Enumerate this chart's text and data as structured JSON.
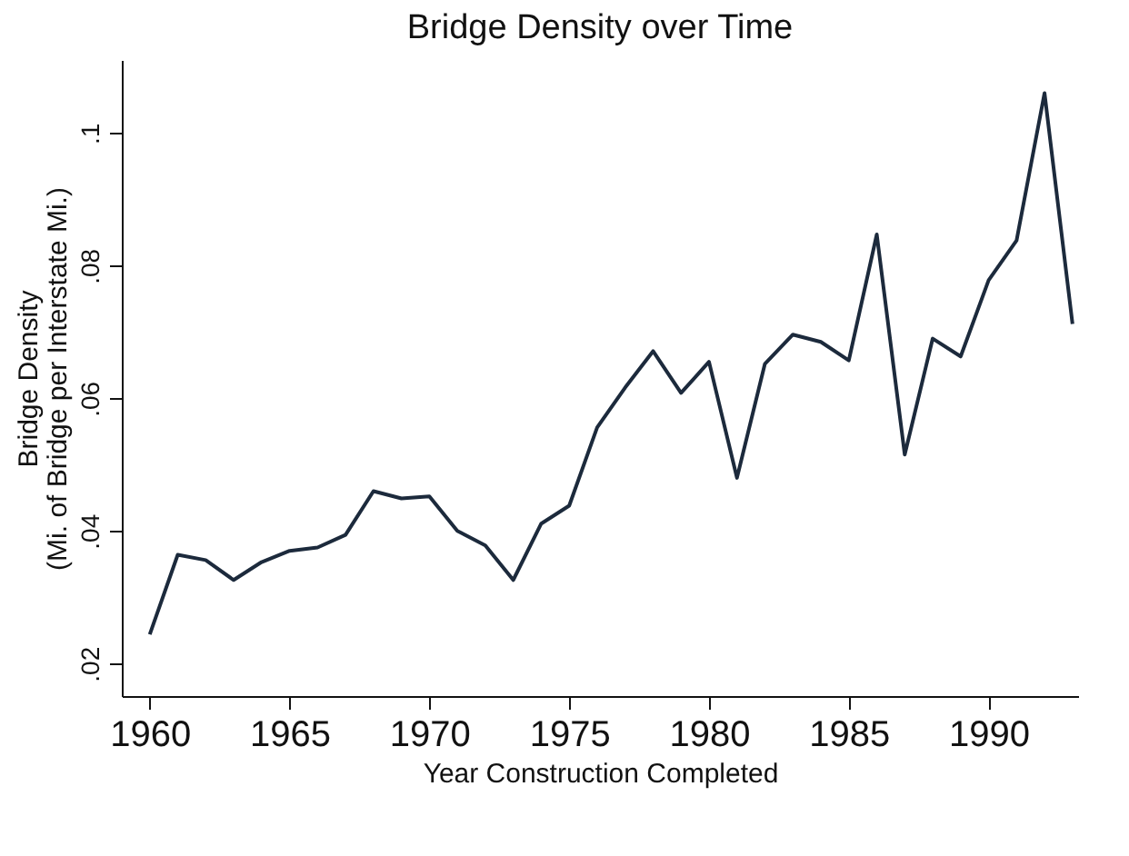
{
  "chart_data": {
    "type": "line",
    "title": "Bridge Density over Time",
    "xlabel": "Year Construction Completed",
    "ylabel": "Bridge Density\n(Mi. of Bridge per Interstate Mi.)",
    "x": [
      1960,
      1961,
      1962,
      1963,
      1964,
      1965,
      1966,
      1967,
      1968,
      1969,
      1970,
      1971,
      1972,
      1973,
      1974,
      1975,
      1976,
      1977,
      1978,
      1979,
      1980,
      1981,
      1982,
      1983,
      1984,
      1985,
      1986,
      1987,
      1988,
      1989,
      1990,
      1991,
      1992,
      1993
    ],
    "series": [
      {
        "color": "#1c2a3c",
        "values": [
          0.0244,
          0.0364,
          0.0356,
          0.0326,
          0.0353,
          0.037,
          0.0375,
          0.0394,
          0.046,
          0.0449,
          0.0452,
          0.04,
          0.0378,
          0.0326,
          0.0411,
          0.0438,
          0.0556,
          0.0616,
          0.0671,
          0.0608,
          0.0655,
          0.048,
          0.0652,
          0.0696,
          0.0685,
          0.0657,
          0.0847,
          0.0515,
          0.069,
          0.0663,
          0.0778,
          0.0838,
          0.106,
          0.0712
        ]
      }
    ],
    "xlim": [
      1959,
      1993.2
    ],
    "xticks": [
      1960,
      1965,
      1970,
      1975,
      1980,
      1985,
      1990
    ],
    "ylim": [
      0.0151,
      0.111
    ],
    "yticks": [
      {
        "value": 0.02,
        "label": ".02"
      },
      {
        "value": 0.04,
        "label": ".04"
      },
      {
        "value": 0.06,
        "label": ".06"
      },
      {
        "value": 0.08,
        "label": ".08"
      },
      {
        "value": 0.1,
        "label": ".1"
      }
    ],
    "grid": false,
    "line_style": "solid"
  }
}
